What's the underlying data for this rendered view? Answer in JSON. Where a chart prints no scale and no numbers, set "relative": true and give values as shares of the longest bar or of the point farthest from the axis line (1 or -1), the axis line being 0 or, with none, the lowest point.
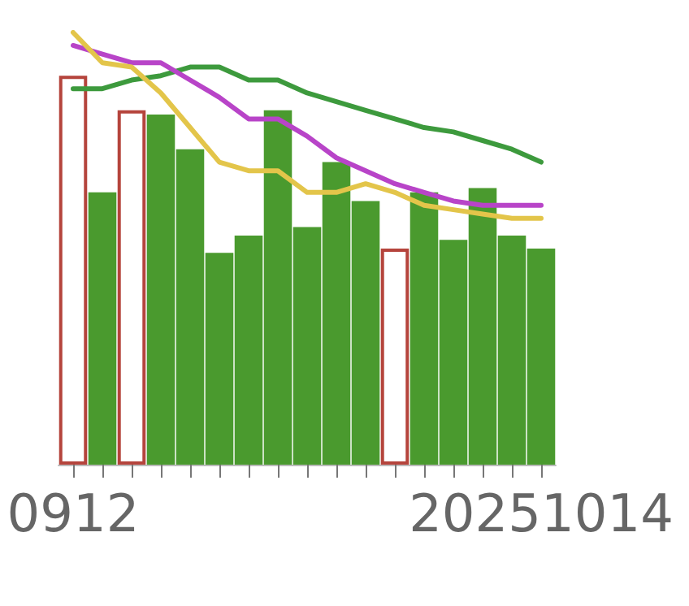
{
  "chart_data": {
    "type": "bar",
    "relative": true,
    "categories": [
      "0912",
      null,
      null,
      null,
      null,
      null,
      null,
      null,
      null,
      null,
      null,
      null,
      null,
      null,
      null,
      null,
      "20251014"
    ],
    "grid": false,
    "marker": "none",
    "series": [
      {
        "color": "#4a9a2e",
        "colors": [
          "#b5443c",
          "#4a9a2e",
          "#b5443c",
          "#4a9a2e",
          "#4a9a2e",
          "#4a9a2e",
          "#4a9a2e",
          "#4a9a2e",
          "#4a9a2e",
          "#4a9a2e",
          "#4a9a2e",
          "#b5443c",
          "#4a9a2e",
          "#4a9a2e",
          "#4a9a2e",
          "#4a9a2e",
          "#4a9a2e"
        ],
        "values": [
          0.9,
          0.63,
          0.82,
          0.81,
          0.73,
          0.49,
          0.53,
          0.82,
          0.55,
          0.7,
          0.61,
          0.5,
          0.63,
          0.52,
          0.64,
          0.53,
          0.5
        ]
      },
      {
        "type": "line",
        "color": "#3d9a3d",
        "values": [
          0.87,
          0.87,
          0.89,
          0.9,
          0.92,
          0.92,
          0.89,
          0.89,
          0.86,
          0.84,
          0.82,
          0.8,
          0.78,
          0.77,
          0.75,
          0.73,
          0.7
        ]
      },
      {
        "type": "line",
        "color": "#b844c8",
        "values": [
          0.97,
          0.95,
          0.93,
          0.93,
          0.89,
          0.85,
          0.8,
          0.8,
          0.76,
          0.71,
          0.68,
          0.65,
          0.63,
          0.61,
          0.6,
          0.6,
          0.6
        ]
      },
      {
        "type": "line",
        "color": "#e3c54a",
        "values": [
          1.0,
          0.93,
          0.92,
          0.86,
          0.78,
          0.7,
          0.68,
          0.68,
          0.63,
          0.63,
          0.65,
          0.63,
          0.6,
          0.59,
          0.58,
          0.57,
          0.57
        ]
      }
    ]
  }
}
